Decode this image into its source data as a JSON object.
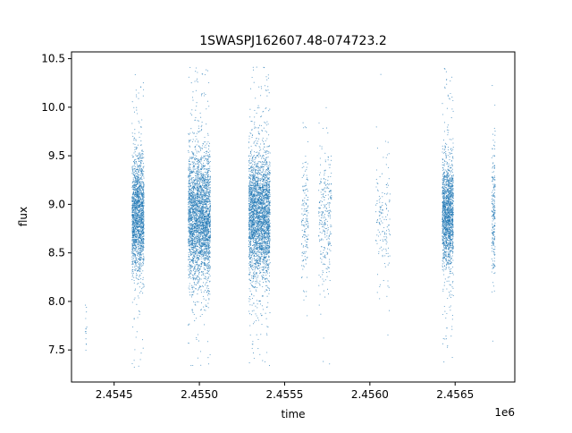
{
  "chart_data": {
    "type": "scatter",
    "title": "1SWASPJ162607.48-074723.2",
    "xlabel": "time",
    "ylabel": "flux",
    "x_offset_label": "1e6",
    "xlim": [
      2454250,
      2456850
    ],
    "ylim": [
      7.17,
      10.57
    ],
    "grid": false,
    "x_ticks": [
      {
        "value": 2454500,
        "label": "2.4545"
      },
      {
        "value": 2455000,
        "label": "2.4550"
      },
      {
        "value": 2455500,
        "label": "2.4555"
      },
      {
        "value": 2456000,
        "label": "2.4560"
      },
      {
        "value": 2456500,
        "label": "2.4565"
      }
    ],
    "y_ticks": [
      {
        "value": 7.5,
        "label": "7.5"
      },
      {
        "value": 8.0,
        "label": "8.0"
      },
      {
        "value": 8.5,
        "label": "8.5"
      },
      {
        "value": 9.0,
        "label": "9.0"
      },
      {
        "value": 9.5,
        "label": "9.5"
      },
      {
        "value": 10.0,
        "label": "10.0"
      },
      {
        "value": 10.5,
        "label": "10.5"
      }
    ],
    "series_color": "#1f77b4",
    "observing_seasons": [
      {
        "x_start": 2454330,
        "x_end": 2454340,
        "y_center": 7.7,
        "y_spread": 0.22,
        "y_min": 7.36,
        "y_max": 8.08,
        "points": 14
      },
      {
        "x_start": 2454605,
        "x_end": 2454675,
        "y_center": 8.88,
        "y_spread": 0.3,
        "y_min": 7.32,
        "y_max": 10.4,
        "points": 1800
      },
      {
        "x_start": 2454935,
        "x_end": 2455065,
        "y_center": 8.86,
        "y_spread": 0.34,
        "y_min": 7.33,
        "y_max": 10.42,
        "points": 3000
      },
      {
        "x_start": 2455290,
        "x_end": 2455415,
        "y_center": 8.88,
        "y_spread": 0.33,
        "y_min": 7.33,
        "y_max": 10.42,
        "points": 3000
      },
      {
        "x_start": 2455600,
        "x_end": 2455640,
        "y_center": 8.85,
        "y_spread": 0.32,
        "y_min": 7.74,
        "y_max": 10.01,
        "points": 160
      },
      {
        "x_start": 2455700,
        "x_end": 2455775,
        "y_center": 8.88,
        "y_spread": 0.34,
        "y_min": 7.35,
        "y_max": 10.26,
        "points": 280
      },
      {
        "x_start": 2456035,
        "x_end": 2456120,
        "y_center": 8.84,
        "y_spread": 0.32,
        "y_min": 7.6,
        "y_max": 10.35,
        "points": 150
      },
      {
        "x_start": 2456425,
        "x_end": 2456490,
        "y_center": 8.92,
        "y_spread": 0.28,
        "y_min": 7.36,
        "y_max": 10.4,
        "points": 1600
      },
      {
        "x_start": 2456715,
        "x_end": 2456735,
        "y_center": 8.92,
        "y_spread": 0.34,
        "y_min": 7.44,
        "y_max": 10.36,
        "points": 220
      }
    ]
  }
}
